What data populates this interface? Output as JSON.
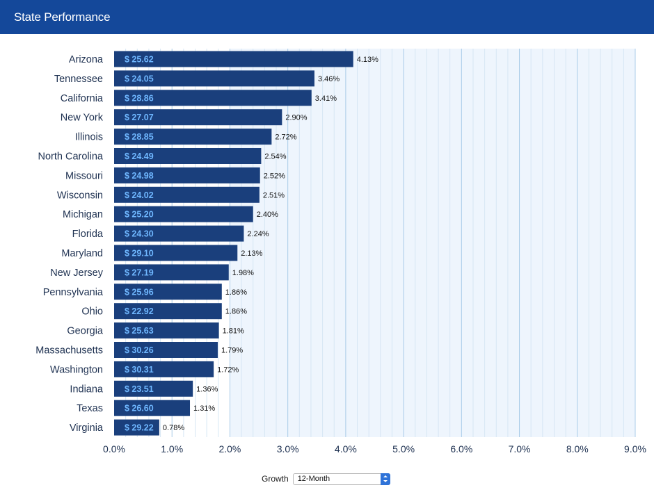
{
  "header": {
    "title": "State Performance"
  },
  "controls": {
    "growth_label": "Growth",
    "period_selected": "12-Month"
  },
  "colors": {
    "header": "#14489a",
    "bar": "#1a3f7c",
    "bar_value_text": "#6fb7ff",
    "plot_band": "#eef5fd",
    "grid_major": "#a9cbe8",
    "grid_minor": "#d6e6f4"
  },
  "chart_data": {
    "type": "bar",
    "orientation": "horizontal",
    "title": "",
    "xlabel": "",
    "ylabel": "",
    "xlim": [
      0,
      9
    ],
    "x_ticks": [
      0,
      1,
      2,
      3,
      4,
      5,
      6,
      7,
      8,
      9
    ],
    "x_tick_labels": [
      "0.0%",
      "1.0%",
      "2.0%",
      "3.0%",
      "4.0%",
      "5.0%",
      "6.0%",
      "7.0%",
      "8.0%",
      "9.0%"
    ],
    "grid": true,
    "categories": [
      "Arizona",
      "Tennessee",
      "California",
      "New York",
      "Illinois",
      "North Carolina",
      "Missouri",
      "Wisconsin",
      "Michigan",
      "Florida",
      "Maryland",
      "New Jersey",
      "Pennsylvania",
      "Ohio",
      "Georgia",
      "Massachusetts",
      "Washington",
      "Indiana",
      "Texas",
      "Virginia"
    ],
    "values": [
      4.13,
      3.46,
      3.41,
      2.9,
      2.72,
      2.54,
      2.52,
      2.51,
      2.4,
      2.24,
      2.13,
      1.98,
      1.86,
      1.86,
      1.81,
      1.79,
      1.72,
      1.36,
      1.31,
      0.78
    ],
    "value_labels": [
      "4.13%",
      "3.46%",
      "3.41%",
      "2.90%",
      "2.72%",
      "2.54%",
      "2.52%",
      "2.51%",
      "2.40%",
      "2.24%",
      "2.13%",
      "1.98%",
      "1.86%",
      "1.86%",
      "1.81%",
      "1.79%",
      "1.72%",
      "1.36%",
      "1.31%",
      "0.78%"
    ],
    "bar_labels": [
      "$ 25.62",
      "$ 24.05",
      "$ 28.86",
      "$ 27.07",
      "$ 28.85",
      "$ 24.49",
      "$ 24.98",
      "$ 24.02",
      "$ 25.20",
      "$ 24.30",
      "$ 29.10",
      "$ 27.19",
      "$ 25.96",
      "$ 22.92",
      "$ 25.63",
      "$ 30.26",
      "$ 30.31",
      "$ 23.51",
      "$ 26.60",
      "$ 29.22"
    ]
  }
}
